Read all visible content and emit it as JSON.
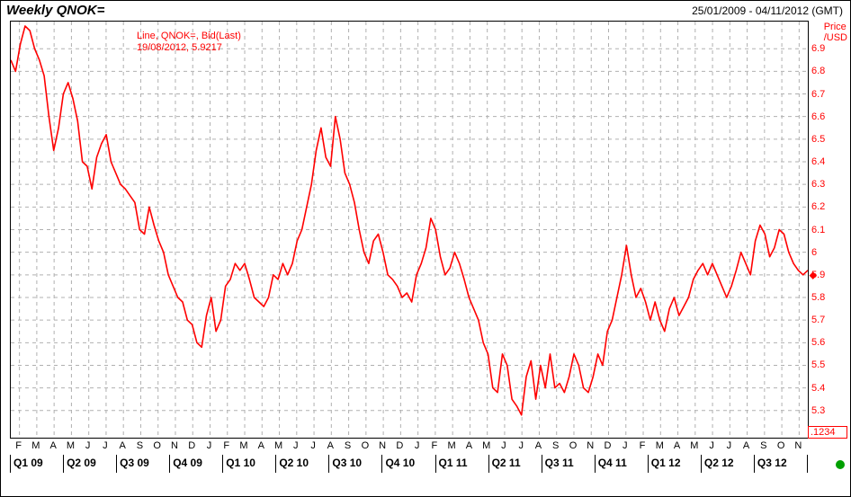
{
  "title": "Weekly QNOK=",
  "date_range": "25/01/2009 - 04/11/2012 (GMT)",
  "legend": {
    "l1": "Line, QNOK=, Bid(Last)",
    "l2": "19/08/2012, 5.9217"
  },
  "chart": {
    "type": "line",
    "line_color": "#ff0000",
    "line_width": 1.6,
    "grid_color": "#b0b0b0",
    "grid_dash": "4 4",
    "background_color": "#ffffff",
    "y": {
      "title_l1": "Price",
      "title_l2": "/USD",
      "min": 5.18,
      "max": 7.02,
      "ticks": [
        5.3,
        5.4,
        5.5,
        5.6,
        5.7,
        5.8,
        5.9,
        6.0,
        6.1,
        6.2,
        6.3,
        6.4,
        6.5,
        6.6,
        6.7,
        6.8,
        6.9
      ],
      "tick_labels": [
        "5.3",
        "5.4",
        "5.5",
        "5.6",
        "5.7",
        "5.8",
        "5.9",
        "6",
        "6.1",
        "6.2",
        "6.3",
        "6.4",
        "6.5",
        "6.6",
        "6.7",
        "6.8",
        "6.9"
      ],
      "tick_color": "#ff0000",
      "last_box": ".1234",
      "last_value": 5.9
    },
    "x": {
      "months": [
        "F",
        "M",
        "A",
        "M",
        "J",
        "J",
        "A",
        "S",
        "O",
        "N",
        "D",
        "J",
        "F",
        "M",
        "A",
        "M",
        "J",
        "J",
        "A",
        "S",
        "O",
        "N",
        "D",
        "J",
        "F",
        "M",
        "A",
        "M",
        "J",
        "J",
        "A",
        "S",
        "O",
        "N",
        "D",
        "J",
        "F",
        "M",
        "A",
        "M",
        "J",
        "J",
        "A",
        "S",
        "O",
        "N"
      ],
      "quarters": [
        "Q1 09",
        "Q2 09",
        "Q3 09",
        "Q4 09",
        "Q1 10",
        "Q2 10",
        "Q3 10",
        "Q4 10",
        "Q1 11",
        "Q2 11",
        "Q3 11",
        "Q4 11",
        "Q1 12",
        "Q2 12",
        "Q3 12"
      ]
    },
    "series": [
      6.85,
      6.8,
      6.92,
      7.0,
      6.98,
      6.9,
      6.85,
      6.78,
      6.6,
      6.45,
      6.55,
      6.7,
      6.75,
      6.68,
      6.58,
      6.4,
      6.38,
      6.28,
      6.42,
      6.48,
      6.52,
      6.4,
      6.35,
      6.3,
      6.28,
      6.25,
      6.22,
      6.1,
      6.08,
      6.2,
      6.12,
      6.05,
      6.0,
      5.9,
      5.85,
      5.8,
      5.78,
      5.7,
      5.68,
      5.6,
      5.58,
      5.72,
      5.8,
      5.65,
      5.7,
      5.85,
      5.88,
      5.95,
      5.92,
      5.95,
      5.88,
      5.8,
      5.78,
      5.76,
      5.8,
      5.9,
      5.88,
      5.95,
      5.9,
      5.95,
      6.05,
      6.1,
      6.2,
      6.3,
      6.45,
      6.55,
      6.42,
      6.38,
      6.6,
      6.5,
      6.35,
      6.3,
      6.22,
      6.1,
      6.0,
      5.95,
      6.05,
      6.08,
      6.0,
      5.9,
      5.88,
      5.85,
      5.8,
      5.82,
      5.78,
      5.9,
      5.95,
      6.02,
      6.15,
      6.1,
      5.98,
      5.9,
      5.93,
      6.0,
      5.95,
      5.88,
      5.8,
      5.75,
      5.7,
      5.6,
      5.55,
      5.4,
      5.38,
      5.55,
      5.5,
      5.35,
      5.32,
      5.28,
      5.45,
      5.52,
      5.35,
      5.5,
      5.4,
      5.55,
      5.4,
      5.42,
      5.38,
      5.45,
      5.55,
      5.5,
      5.4,
      5.38,
      5.45,
      5.55,
      5.5,
      5.65,
      5.7,
      5.8,
      5.9,
      6.03,
      5.9,
      5.8,
      5.84,
      5.78,
      5.7,
      5.78,
      5.7,
      5.65,
      5.75,
      5.8,
      5.72,
      5.76,
      5.8,
      5.88,
      5.92,
      5.95,
      5.9,
      5.95,
      5.9,
      5.85,
      5.8,
      5.85,
      5.92,
      6.0,
      5.95,
      5.9,
      6.05,
      6.12,
      6.08,
      5.98,
      6.02,
      6.1,
      6.08,
      6.0,
      5.95,
      5.92,
      5.9,
      5.92
    ]
  },
  "status_dot_color": "#00a000"
}
